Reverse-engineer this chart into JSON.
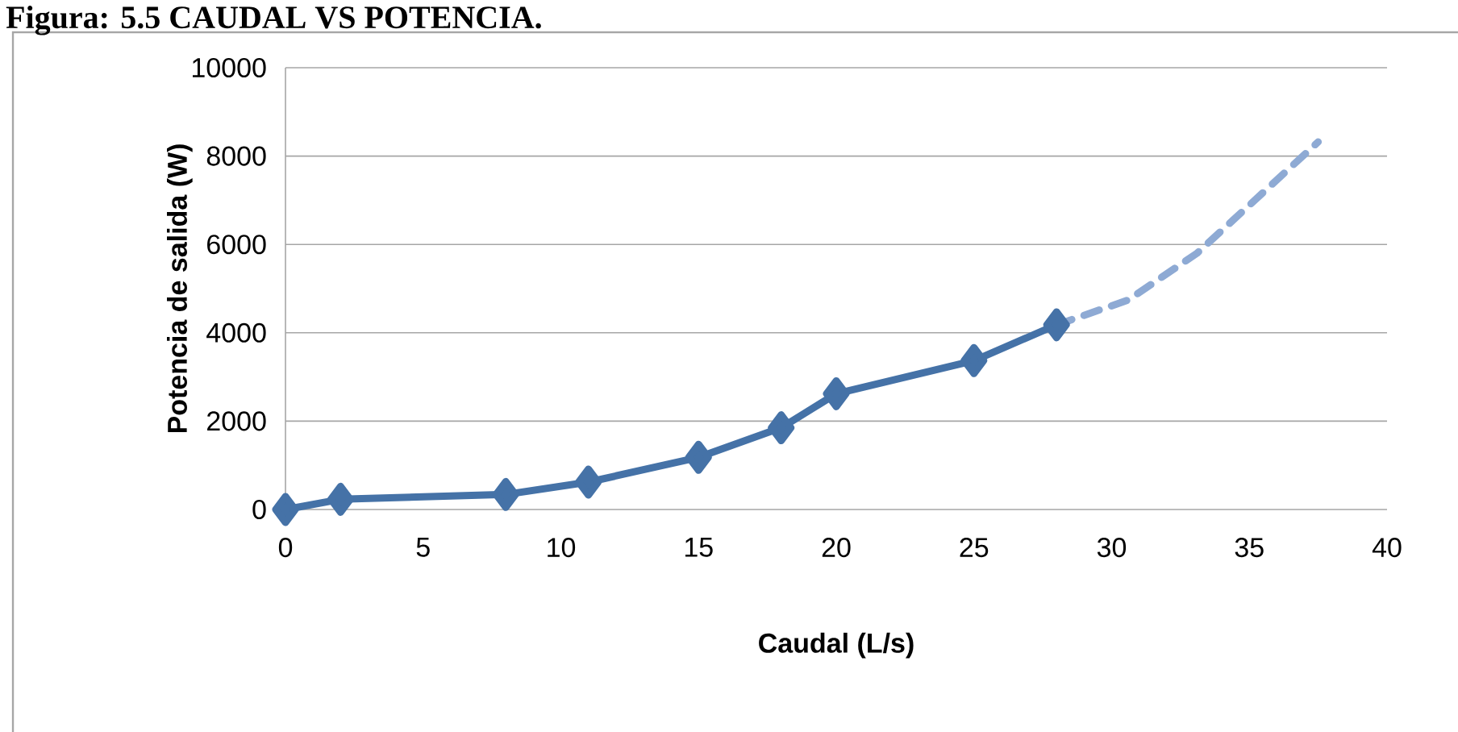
{
  "chart_data": {
    "type": "line",
    "title": "Figura: 5.5 CAUDAL VS POTENCIA.",
    "xlabel": "Caudal (L/s)",
    "ylabel": "Potencia de salida (W)",
    "series": [
      {
        "color": "#4572a7",
        "x": [
          0,
          2,
          8,
          11,
          15,
          18,
          20,
          25,
          28
        ],
        "values": [
          0,
          230,
          340,
          620,
          1180,
          1850,
          2620,
          3370,
          4180
        ],
        "marker": "diamond",
        "line_style": "solid"
      },
      {
        "color": "#8eaad4",
        "x": [
          28,
          30.6,
          33.1,
          37.5
        ],
        "values": [
          4180,
          4740,
          5800,
          8320
        ],
        "marker": "none",
        "line_style": "dashed"
      }
    ],
    "xlim": [
      0,
      40
    ],
    "xticks": [
      0,
      5,
      10,
      15,
      20,
      25,
      30,
      35,
      40
    ],
    "ylim": [
      0,
      10000
    ],
    "yticks": [
      0,
      2000,
      4000,
      6000,
      8000,
      10000
    ],
    "grid": "y"
  }
}
